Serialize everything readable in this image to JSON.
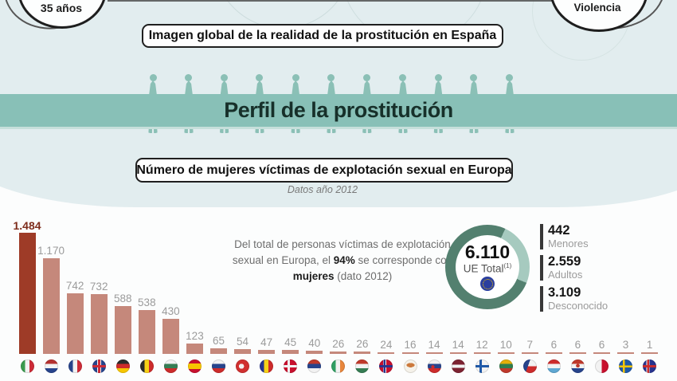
{
  "top": {
    "left_circle_label": "35 años",
    "right_circle_label": "Violencia"
  },
  "header": {
    "title": "Imagen global de la realidad de la prostitución en España",
    "banner_title": "Perfil de la prostitución",
    "section_title": "Número de mujeres víctimas de explotación sexual en Europa",
    "subtitle": "Datos año 2012"
  },
  "summary": {
    "part1": "Del total de personas víctimas de explotación sexual en Europa, el ",
    "bold1": "94%",
    "part2": " se corresponde con ",
    "bold2": "mujeres",
    "part3": " (dato 2012)"
  },
  "donut": {
    "value": "6.110",
    "label": "UE Total",
    "footnote_mark": "(1)",
    "ring_color": "#53806f",
    "ring_light_color": "#a6cabf"
  },
  "stats": [
    {
      "value": "442",
      "label": "Menores"
    },
    {
      "value": "2.559",
      "label": "Adultos"
    },
    {
      "value": "3.109",
      "label": "Desconocido"
    }
  ],
  "chart_data": {
    "type": "bar",
    "title": "Número de mujeres víctimas de explotación sexual en Europa",
    "subtitle": "Datos año 2012",
    "categories": [
      "Italia",
      "Países Bajos",
      "Francia",
      "Reino Unido",
      "Alemania",
      "Bélgica",
      "Bulgaria",
      "España",
      "Rusia",
      "Turquía",
      "Rumanía",
      "Dinamarca",
      "Serbia",
      "Irlanda",
      "Hungría",
      "Noruega",
      "Chipre",
      "Eslovaquia",
      "Letonia",
      "Finlandia",
      "Lituania",
      "República Checa",
      "Luxemburgo",
      "Croacia",
      "Malta",
      "Suecia",
      "Islandia"
    ],
    "values": [
      1484,
      1170,
      742,
      732,
      588,
      538,
      430,
      123,
      65,
      54,
      47,
      45,
      40,
      26,
      26,
      24,
      16,
      14,
      14,
      12,
      10,
      7,
      6,
      6,
      6,
      3,
      1
    ],
    "value_labels": [
      "1.484",
      "1.170",
      "742",
      "732",
      "588",
      "538",
      "430",
      "123",
      "65",
      "54",
      "47",
      "45",
      "40",
      "26",
      "26",
      "24",
      "16",
      "14",
      "14",
      "12",
      "10",
      "7",
      "6",
      "6",
      "6",
      "3",
      "1"
    ],
    "highlight_index": 0,
    "bar_color": "#c5887b",
    "highlight_color": "#9e3b27",
    "ylim": [
      0,
      1500
    ],
    "grid": false,
    "legend": false
  },
  "flags": [
    {
      "country": "italy",
      "css": "linear-gradient(90deg,#3a9b4e 0 33%,#f2f2f2 33% 66%,#cd2b37 66%)"
    },
    {
      "country": "netherlands",
      "css": "linear-gradient(180deg,#b5312f 0 33%,#f2f2f2 33% 66%,#27448c 66%)"
    },
    {
      "country": "france",
      "css": "linear-gradient(90deg,#27448c 0 33%,#f2f2f2 33% 66%,#cd2b37 66%)"
    },
    {
      "country": "united-kingdom",
      "css": "linear-gradient(0deg,transparent 41%,#cd2b37 41% 59%,transparent 59%),linear-gradient(90deg,#27448c 0 36%,#f2f2f2 36% 41%,#cd2b37 41% 59%,#f2f2f2 59% 64%,#27448c 64%)"
    },
    {
      "country": "germany",
      "css": "linear-gradient(180deg,#2b2b2b 0 33%,#cd2b2b 33% 66%,#f7c600 66%)"
    },
    {
      "country": "belgium",
      "css": "linear-gradient(90deg,#2b2b2b 0 33%,#f7d117 33% 66%,#cd2b2b 66%)"
    },
    {
      "country": "bulgaria",
      "css": "linear-gradient(180deg,#f2f2f2 0 33%,#367d54 33% 66%,#cd2b2b 66%)"
    },
    {
      "country": "spain",
      "css": "linear-gradient(180deg,#c8102e 0 28%,#f7c600 28% 72%,#c8102e 72%)"
    },
    {
      "country": "russia",
      "css": "linear-gradient(180deg,#f2f2f2 0 33%,#27448c 33% 66%,#cd2b2b 66%)"
    },
    {
      "country": "turkey",
      "css": "radial-gradient(circle at 42% 50%,#f2f2f2 0 24%,#d13030 25%)"
    },
    {
      "country": "romania",
      "css": "linear-gradient(90deg,#27338f 0 33%,#f7d117 33% 66%,#cd2b2b 66%)"
    },
    {
      "country": "denmark",
      "css": "linear-gradient(0deg,transparent 42%,#f2f2f2 42% 58%,transparent 58%),linear-gradient(90deg,#c8102e 0 30%,#f2f2f2 30% 46%,#c8102e 46%)"
    },
    {
      "country": "serbia",
      "css": "linear-gradient(180deg,#c0392b 0 33%,#27448c 33% 66%,#f2f2f2 66%)"
    },
    {
      "country": "ireland",
      "css": "linear-gradient(90deg,#2f9e62 0 33%,#f2f2f2 33% 66%,#e8863c 66%)"
    },
    {
      "country": "hungary",
      "css": "linear-gradient(180deg,#c0392b 0 33%,#f2f2f2 33% 66%,#367d54 66%)"
    },
    {
      "country": "norway",
      "css": "linear-gradient(0deg,transparent 40%,#27338f 43% 57%,transparent 60%),linear-gradient(90deg,#c8102e 0 28%,#f2f2f2 28% 33%,#27338f 33% 48%,#f2f2f2 48% 53%,#c8102e 53%)"
    },
    {
      "country": "cyprus",
      "css": "radial-gradient(ellipse 30% 16% at 50% 42%,#cc7a3d 0 99%,transparent 100%),linear-gradient(#f5f2ea,#f5f2ea)"
    },
    {
      "country": "slovakia",
      "css": "radial-gradient(circle at 38% 55%,#cd2b2b 0 15%,transparent 16%),linear-gradient(180deg,#f2f2f2 0 33%,#27448c 33% 66%,#cd2b2b 66%)"
    },
    {
      "country": "latvia",
      "css": "linear-gradient(180deg,#7d2231 0 38%,#f2f2f2 38% 62%,#7d2231 62%)"
    },
    {
      "country": "finland",
      "css": "linear-gradient(0deg,transparent 41%,#1f59a8 41% 59%,transparent 59%),linear-gradient(90deg,#f2f2f2 0 28%,#1f59a8 28% 46%,#f2f2f2 46%)"
    },
    {
      "country": "lithuania",
      "css": "linear-gradient(180deg,#e5b00a 0 33%,#2f7d4f 33% 66%,#c0392b 66%)"
    },
    {
      "country": "czech-republic",
      "css": "linear-gradient(110deg,#27448c 0 38%,transparent 38.5%),linear-gradient(180deg,#f2f2f2 0 50%,#cd2b2b 50%)"
    },
    {
      "country": "luxembourg",
      "css": "linear-gradient(180deg,#cd2b2b 0 33%,#f2f2f2 33% 66%,#5fa8d3 66%)"
    },
    {
      "country": "croatia",
      "css": "radial-gradient(circle at 50% 46%,#c0392b 0 18%,transparent 19%),linear-gradient(180deg,#c0392b 0 33%,#f2f2f2 33% 66%,#27448c 66%)"
    },
    {
      "country": "malta",
      "css": "linear-gradient(90deg,#f2f2f2 0 50%,#c8102e 50%)"
    },
    {
      "country": "sweden",
      "css": "linear-gradient(0deg,transparent 41%,#f7c600 41% 57%,transparent 57%),linear-gradient(90deg,#1f59a8 0 28%,#f7c600 28% 44%,#1f59a8 44%)"
    },
    {
      "country": "iceland",
      "css": "linear-gradient(0deg,transparent 41%,#cd2b2b 43% 57%,transparent 59%),linear-gradient(90deg,#27338f 0 26%,#f2f2f2 26% 31%,#cd2b2b 31% 46%,#f2f2f2 46% 51%,#27338f 51%)"
    }
  ]
}
